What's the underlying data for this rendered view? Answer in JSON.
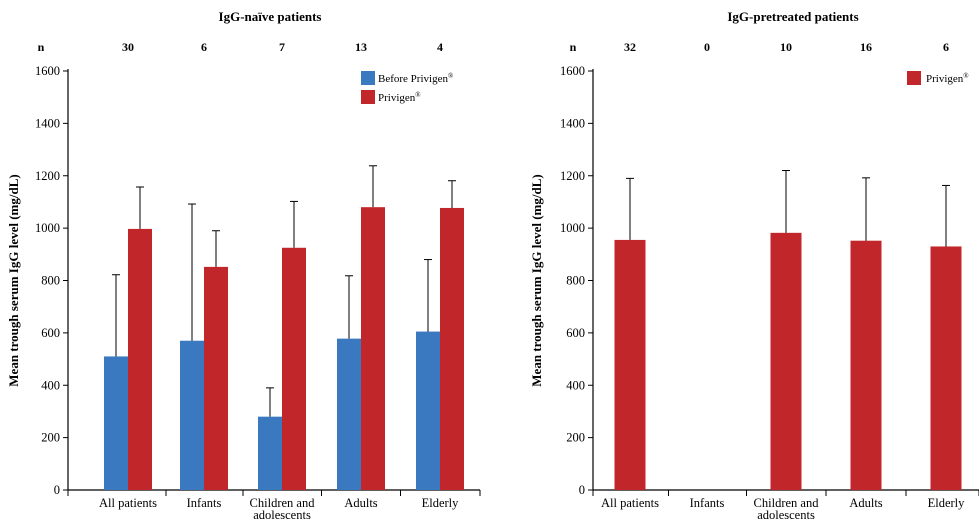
{
  "colors": {
    "before": "#3a79bf",
    "privigen": "#c1262b",
    "axis": "#000000"
  },
  "chart_data": [
    {
      "type": "bar",
      "title": "IgG-naïve patients",
      "ylabel": "Mean trough serum IgG level (mg/dL)",
      "xlabel": "",
      "ylim": [
        0,
        1600
      ],
      "yticks": [
        0,
        200,
        400,
        600,
        800,
        1000,
        1200,
        1400,
        1600
      ],
      "n_label": "n",
      "n_values": [
        "30",
        "6",
        "7",
        "13",
        "4"
      ],
      "categories": [
        "All patients",
        "Infants",
        [
          "Children and",
          "adolescents"
        ],
        "Adults",
        "Elderly"
      ],
      "legend_position": "top-right",
      "grid": false,
      "series": [
        {
          "name": "Before Privigen®",
          "color_key": "before",
          "values": [
            510,
            570,
            280,
            578,
            605
          ],
          "errors": [
            312,
            522,
            110,
            240,
            275
          ]
        },
        {
          "name": "Privigen®",
          "color_key": "privigen",
          "values": [
            997,
            852,
            925,
            1080,
            1077
          ],
          "errors": [
            160,
            138,
            177,
            158,
            104
          ]
        }
      ]
    },
    {
      "type": "bar",
      "title": "IgG-pretreated patients",
      "ylabel": "Mean trough serum IgG level (mg/dL)",
      "xlabel": "",
      "ylim": [
        0,
        1600
      ],
      "yticks": [
        0,
        200,
        400,
        600,
        800,
        1000,
        1200,
        1400,
        1600
      ],
      "n_label": "n",
      "n_values": [
        "32",
        "0",
        "10",
        "16",
        "6"
      ],
      "categories": [
        "All patients",
        "Infants",
        [
          "Children and",
          "adolescents"
        ],
        "Adults",
        "Elderly"
      ],
      "legend_position": "top-right",
      "grid": false,
      "series": [
        {
          "name": "Privigen®",
          "color_key": "privigen",
          "values": [
            955,
            null,
            982,
            952,
            930
          ],
          "errors": [
            235,
            null,
            238,
            240,
            233
          ]
        }
      ]
    }
  ]
}
